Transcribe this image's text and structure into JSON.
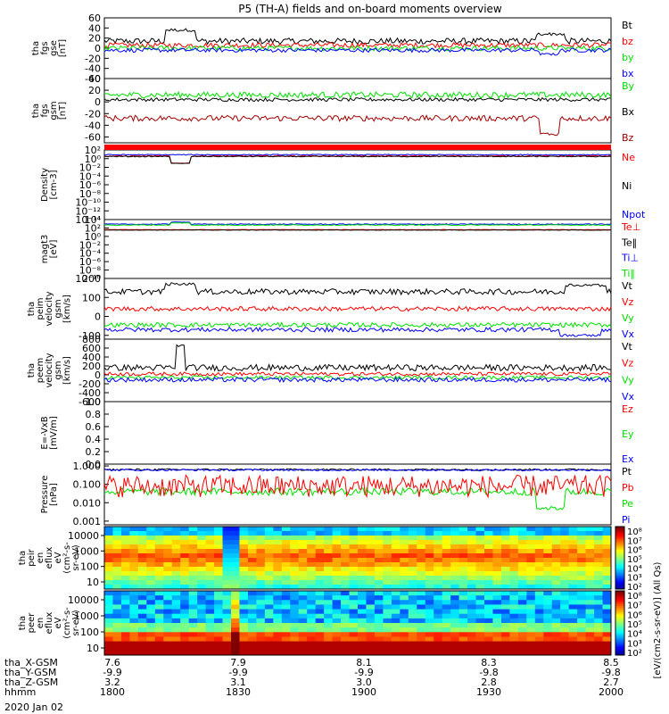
{
  "title": "P5 (TH-A) fields and on-board moments overview",
  "date_label": "2020 Jan 02",
  "colors": {
    "black": "#000000",
    "red": "#ff0000",
    "green": "#00e000",
    "blue": "#0000ff",
    "darkred": "#a00000",
    "axis": "#000000"
  },
  "panels": [
    {
      "id": "fgs",
      "ylabel": [
        "tha",
        "fgs",
        "gse",
        "[nT]"
      ],
      "scale": "linear",
      "ylim": [
        -60,
        60
      ],
      "ticks": [
        60,
        40,
        20,
        0,
        -20,
        -40,
        -60
      ],
      "tick_labels": [
        "60",
        "40",
        "20",
        "0",
        "-20",
        "-40",
        "-60"
      ],
      "legend": [
        {
          "label": "Bt",
          "color": "#000000"
        },
        {
          "label": "bz",
          "color": "#ff0000"
        },
        {
          "label": "by",
          "color": "#00e000"
        },
        {
          "label": "bx",
          "color": "#0000ff"
        }
      ],
      "series": [
        {
          "name": "Bt",
          "color": "#000000",
          "level": 14,
          "amp": 6,
          "spikes": [
            [
              0.15,
              36,
              0.03
            ],
            [
              0.88,
              28,
              0.03
            ]
          ]
        },
        {
          "name": "bz",
          "color": "#ff0000",
          "level": 6,
          "amp": 5,
          "spikes": []
        },
        {
          "name": "by",
          "color": "#00e000",
          "level": 0,
          "amp": 5,
          "spikes": []
        },
        {
          "name": "bx",
          "color": "#0000ff",
          "level": -4,
          "amp": 4,
          "spikes": [
            [
              0.88,
              -12,
              0.02
            ]
          ]
        }
      ]
    },
    {
      "id": "fgs_gsm",
      "ylabel": [
        "tha",
        "fgs",
        "gsm",
        "[nT]"
      ],
      "scale": "linear",
      "ylim": [
        -70,
        40
      ],
      "ticks": [
        40,
        20,
        0,
        -20,
        -40,
        -60
      ],
      "tick_labels": [
        "40",
        "20",
        "0",
        "-20",
        "-40",
        "-60"
      ],
      "legend": [
        {
          "label": "By",
          "color": "#00e000"
        },
        {
          "label": "Bx",
          "color": "#000000"
        },
        {
          "label": "Bz",
          "color": "#a00000"
        }
      ],
      "series": [
        {
          "name": "Bx",
          "color": "#000000",
          "level": 4,
          "amp": 3,
          "spikes": []
        },
        {
          "name": "By",
          "color": "#00e000",
          "level": 12,
          "amp": 5,
          "spikes": []
        },
        {
          "name": "Bz",
          "color": "#a00000",
          "level": -28,
          "amp": 5,
          "spikes": [
            [
              0.88,
              -55,
              0.02
            ]
          ]
        }
      ]
    },
    {
      "id": "density",
      "ylabel": [
        "Density",
        "[cm-3]"
      ],
      "scale": "log",
      "ylim": [
        -14,
        2
      ],
      "ticks": [
        2,
        0,
        -2,
        -4,
        -6,
        -8,
        -10,
        -12,
        -14
      ],
      "tick_labels": [
        "10²",
        "10⁰",
        "10⁻²",
        "10⁻⁴",
        "10⁻⁶",
        "10⁻⁸",
        "10⁻¹⁰",
        "10⁻¹²",
        "10⁻¹⁴"
      ],
      "legend": [
        {
          "label": "Ne",
          "color": "#ff0000"
        },
        {
          "label": "Ni",
          "color": "#000000"
        },
        {
          "label": "Npot",
          "color": "#0000ff"
        }
      ],
      "series": [
        {
          "name": "Ne",
          "color": "#ff0000",
          "level": 0.6,
          "amp": 0.15,
          "spikes": [
            [
              0.15,
              -1.0,
              0.02
            ]
          ]
        },
        {
          "name": "Ni",
          "color": "#000000",
          "level": 0.5,
          "amp": 0.1,
          "spikes": [
            [
              0.15,
              -1.1,
              0.02
            ]
          ]
        },
        {
          "name": "Npot",
          "color": "#0000ff",
          "level": 0.9,
          "amp": 0.1,
          "spikes": []
        }
      ]
    },
    {
      "id": "temp",
      "ylabel": [
        "magt3",
        "[eV]"
      ],
      "scale": "log",
      "ylim": [
        -10,
        4
      ],
      "ticks": [
        4,
        2,
        0,
        -2,
        -4,
        -6,
        -8,
        -10
      ],
      "tick_labels": [
        "10⁴",
        "10²",
        "10⁰",
        "10⁻²",
        "10⁻⁴",
        "10⁻⁶",
        "10⁻⁸",
        "10⁻¹⁰"
      ],
      "legend": [
        {
          "label": "Te⊥",
          "color": "#ff0000"
        },
        {
          "label": "Te‖",
          "color": "#000000"
        },
        {
          "label": "Ti⊥",
          "color": "#0000ff"
        },
        {
          "label": "Ti‖",
          "color": "#00e000"
        }
      ],
      "series": [
        {
          "name": "Te⊥",
          "color": "#ff0000",
          "level": 1.6,
          "amp": 0.05,
          "spikes": []
        },
        {
          "name": "Te‖",
          "color": "#000000",
          "level": 1.5,
          "amp": 0.05,
          "spikes": []
        },
        {
          "name": "Ti⊥",
          "color": "#0000ff",
          "level": 2.9,
          "amp": 0.1,
          "spikes": [
            [
              0.15,
              3.4,
              0.02
            ]
          ]
        },
        {
          "name": "Ti‖",
          "color": "#00e000",
          "level": 2.7,
          "amp": 0.1,
          "spikes": [
            [
              0.15,
              3.2,
              0.02
            ]
          ]
        }
      ]
    },
    {
      "id": "peim",
      "ylabel": [
        "tha",
        "peim",
        "velocity",
        "gsm",
        "[km/s]"
      ],
      "scale": "linear",
      "ylim": [
        -120,
        200
      ],
      "ticks": [
        200,
        100,
        0,
        -100
      ],
      "tick_labels": [
        "200",
        "100",
        "0",
        "-100"
      ],
      "legend": [
        {
          "label": "Vt",
          "color": "#000000"
        },
        {
          "label": "Vz",
          "color": "#ff0000"
        },
        {
          "label": "Vy",
          "color": "#00e000"
        },
        {
          "label": "Vx",
          "color": "#0000ff"
        }
      ],
      "series": [
        {
          "name": "Vt",
          "color": "#000000",
          "level": 130,
          "amp": 15,
          "spikes": [
            [
              0.15,
              170,
              0.03
            ],
            [
              0.95,
              165,
              0.04
            ]
          ]
        },
        {
          "name": "Vz",
          "color": "#ff0000",
          "level": 40,
          "amp": 12,
          "spikes": []
        },
        {
          "name": "Vy",
          "color": "#00e000",
          "level": -45,
          "amp": 12,
          "spikes": []
        },
        {
          "name": "Vx",
          "color": "#0000ff",
          "level": -70,
          "amp": 12,
          "spikes": [
            [
              0.94,
              -100,
              0.04
            ]
          ]
        }
      ]
    },
    {
      "id": "peem",
      "ylabel": [
        "tha",
        "peem",
        "velocity",
        "gsm",
        "[km/s]"
      ],
      "scale": "linear",
      "ylim": [
        -600,
        800
      ],
      "ticks": [
        800,
        600,
        400,
        200,
        0,
        -200,
        -400,
        -600
      ],
      "tick_labels": [
        "800",
        "600",
        "400",
        "200",
        "0",
        "-200",
        "-400",
        "-600"
      ],
      "legend": [
        {
          "label": "Vt",
          "color": "#000000"
        },
        {
          "label": "Vz",
          "color": "#ff0000"
        },
        {
          "label": "Vy",
          "color": "#00e000"
        },
        {
          "label": "Vx",
          "color": "#0000ff"
        }
      ],
      "series": [
        {
          "name": "Vt",
          "color": "#000000",
          "level": 160,
          "amp": 70,
          "spikes": [
            [
              0.15,
              650,
              0.01
            ]
          ]
        },
        {
          "name": "Vz",
          "color": "#ff0000",
          "level": 20,
          "amp": 40,
          "spikes": []
        },
        {
          "name": "Vy",
          "color": "#00e000",
          "level": -60,
          "amp": 40,
          "spikes": []
        },
        {
          "name": "Vx",
          "color": "#0000ff",
          "level": -110,
          "amp": 50,
          "spikes": []
        }
      ]
    },
    {
      "id": "efield",
      "ylabel": [
        "E=-VxB",
        "[mV/m]"
      ],
      "scale": "linear",
      "ylim": [
        0,
        1
      ],
      "ticks": [
        1.0,
        0.8,
        0.6,
        0.4,
        0.2,
        0.0
      ],
      "tick_labels": [
        "1.0",
        "0.8",
        "0.6",
        "0.4",
        "0.2",
        "0.0"
      ],
      "legend": [
        {
          "label": "Ez",
          "color": "#ff0000"
        },
        {
          "label": "Ey",
          "color": "#00e000"
        },
        {
          "label": "Ex",
          "color": "#0000ff"
        }
      ],
      "series": []
    },
    {
      "id": "pressure",
      "ylabel": [
        "Pressure",
        "[nPa]"
      ],
      "scale": "log",
      "ylim": [
        -3.2,
        0.1
      ],
      "ticks": [
        0,
        -1,
        -2,
        -3
      ],
      "tick_labels": [
        "1.000",
        "0.100",
        "0.010",
        "0.001"
      ],
      "legend": [
        {
          "label": "Pt",
          "color": "#000000"
        },
        {
          "label": "Pb",
          "color": "#ff0000"
        },
        {
          "label": "Pe",
          "color": "#00e000"
        },
        {
          "label": "Pi",
          "color": "#0000ff"
        }
      ],
      "series": [
        {
          "name": "Pt",
          "color": "#000000",
          "level": -0.2,
          "amp": 0.05,
          "spikes": []
        },
        {
          "name": "Pi",
          "color": "#0000ff",
          "level": -0.22,
          "amp": 0.05,
          "spikes": []
        },
        {
          "name": "Pe",
          "color": "#00e000",
          "level": -1.4,
          "amp": 0.2,
          "spikes": [
            [
              0.88,
              -2.3,
              0.03
            ]
          ]
        },
        {
          "name": "Pb",
          "color": "#ff0000",
          "level": -1.1,
          "amp": 0.6,
          "spikes": []
        }
      ]
    },
    {
      "id": "peir",
      "ylabel": [
        "tha",
        "peir",
        "en",
        "eflux",
        "eV",
        "(cm²-s-",
        "sr-eV)"
      ],
      "scale": "spectrogram",
      "ticks": [
        10000,
        1000,
        100,
        10
      ],
      "tick_labels": [
        "10000",
        "1000",
        "100",
        "10"
      ],
      "legend": []
    },
    {
      "id": "peer",
      "ylabel": [
        "tha",
        "peer",
        "en",
        "eflux",
        "eV",
        "(cm²-s-",
        "sr-eV)"
      ],
      "scale": "spectrogram",
      "ticks": [
        10000,
        1000,
        100,
        10
      ],
      "tick_labels": [
        "10000",
        "1000",
        "100",
        "10"
      ],
      "legend": []
    }
  ],
  "colorbar": {
    "label": "[eV/(cm2-s-sr-eV)] (All Qs)",
    "ticks": [
      "10⁸",
      "10⁷",
      "10⁶",
      "10⁵",
      "10⁴",
      "10³",
      "10²"
    ]
  },
  "colorbar2": {
    "ticks": [
      "10⁸",
      "10⁷",
      "10⁶",
      "10⁵",
      "10⁴",
      "10³",
      "10²"
    ]
  },
  "xaxis": {
    "rows": [
      {
        "label": "tha_X-GSM",
        "values": [
          "7.6",
          "7.9",
          "8.1",
          "8.3",
          "8.5"
        ]
      },
      {
        "label": "tha_Y-GSM",
        "values": [
          "-9.9",
          "-9.9",
          "-9.9",
          "-9.8",
          "-9.8"
        ]
      },
      {
        "label": "tha_Z-GSM",
        "values": [
          "3.2",
          "3.1",
          "3.0",
          "2.8",
          "2.7"
        ]
      },
      {
        "label": "hhmm",
        "values": [
          "1800",
          "1830",
          "1900",
          "1930",
          "2000"
        ]
      }
    ]
  }
}
